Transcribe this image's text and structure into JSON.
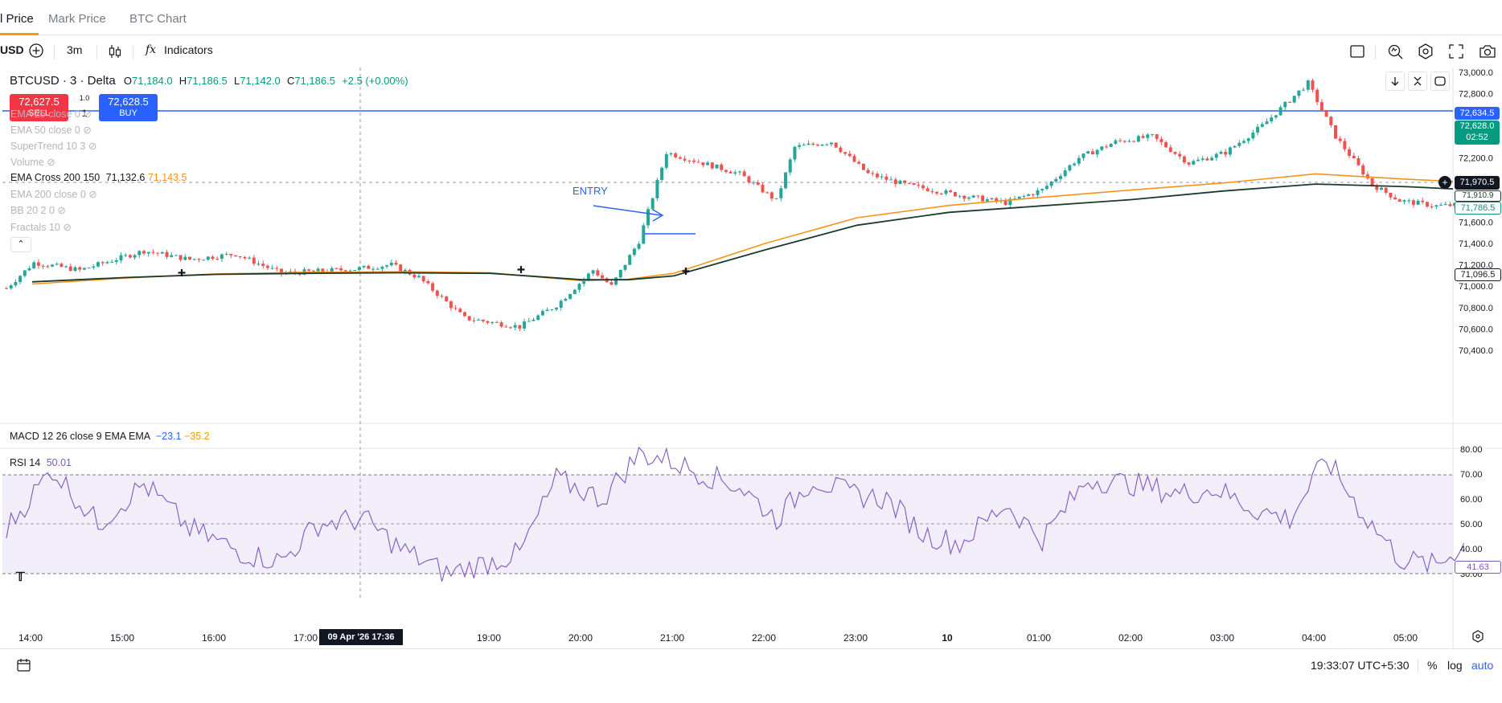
{
  "tabs": [
    {
      "label": "l Price",
      "active": true
    },
    {
      "label": "Mark Price",
      "active": false
    },
    {
      "label": "BTC Chart",
      "active": false
    }
  ],
  "toolbar": {
    "symbol_fragment": "USD",
    "interval": "3m",
    "indicators_label": "Indicators",
    "fx_glyph": "fx"
  },
  "legend": {
    "symbol": "BTCUSD · 3 · Delta",
    "open_label": "O",
    "open": "71,184.0",
    "high_label": "H",
    "high": "71,186.5",
    "low_label": "L",
    "low": "71,142.0",
    "close_label": "C",
    "close": "71,186.5",
    "change": "+2.5 (+0.00%)"
  },
  "trade": {
    "sell_price": "72,627.5",
    "sell_label": "SELL",
    "buy_price": "72,628.5",
    "buy_label": "BUY",
    "spread": "1.0",
    "qty": "1"
  },
  "indicators": [
    {
      "label": "EMA 25 close 0",
      "visible": false
    },
    {
      "label": "EMA 50 close 0",
      "visible": false
    },
    {
      "label": "SuperTrend 10 3",
      "visible": false
    },
    {
      "label": "Volume",
      "visible": false
    },
    {
      "label": "EMA Cross 200 150",
      "visible": true,
      "v1": "71,132.6",
      "v2": "71,143.5"
    },
    {
      "label": "EMA 200 close 0",
      "visible": false
    },
    {
      "label": "BB 20 2 0",
      "visible": false
    },
    {
      "label": "Fractals 10",
      "visible": false
    }
  ],
  "annotation": {
    "entry": "ENTRY"
  },
  "price_axis": {
    "ticks": [
      "73,000.0",
      "72,800.0",
      "72,600.0",
      "72,400.0",
      "72,200.0",
      "72,000.0",
      "71,800.0",
      "71,600.0",
      "71,400.0",
      "71,200.0",
      "71,000.0",
      "70,800.0",
      "70,600.0",
      "70,400.0"
    ],
    "labels": {
      "blue_line": "72,634.5",
      "last_price": "72,628.0",
      "countdown": "02:52",
      "crosshair": "71,970.5",
      "ema_black": "71,910.9",
      "ema_green": "71,786.5",
      "lower_box": "71,096.5"
    }
  },
  "macd": {
    "label": "MACD 12 26 close 9 EMA EMA",
    "v1": "−23.1",
    "v2": "−35.2"
  },
  "rsi": {
    "label": "RSI 14",
    "value": "50.01",
    "ticks": [
      "80.00",
      "70.00",
      "60.00",
      "50.00",
      "40.00",
      "30.00"
    ],
    "last_label": "41.63"
  },
  "time_axis": {
    "ticks": [
      "14:00",
      "15:00",
      "16:00",
      "17:00",
      "19:00",
      "20:00",
      "21:00",
      "22:00",
      "23:00",
      "10",
      "01:00",
      "02:00",
      "03:00",
      "04:00",
      "05:00"
    ],
    "crosshair_label": "09 Apr '26   17:36"
  },
  "bottom": {
    "clock": "19:33:07 UTC+5:30",
    "percent": "%",
    "log": "log",
    "auto": "auto"
  },
  "chart_data": {
    "type": "line",
    "title": "BTCUSD · 3 · Delta",
    "series": [
      {
        "name": "EMA Cross 200 150",
        "color": "#1b3a2a",
        "x": [
          "14:00",
          "15:00",
          "16:00",
          "17:00",
          "18:00",
          "19:00",
          "20:00",
          "20:30",
          "21:00",
          "22:00",
          "23:00",
          "00:00",
          "01:00",
          "02:00",
          "03:00",
          "04:00",
          "05:00",
          "05:30"
        ],
        "values": [
          71040,
          71080,
          71110,
          71120,
          71125,
          71120,
          71060,
          71060,
          71096,
          71340,
          71570,
          71690,
          71750,
          71810,
          71890,
          71955,
          71930,
          71910
        ]
      },
      {
        "name": "",
        "color": "#f7931a",
        "x": [
          "14:00",
          "15:00",
          "16:00",
          "17:00",
          "18:00",
          "19:00",
          "20:00",
          "20:30",
          "21:00",
          "22:00",
          "23:00",
          "00:00",
          "01:00",
          "02:00",
          "03:00",
          "04:00",
          "05:00",
          "05:30"
        ],
        "values": [
          71020,
          71075,
          71115,
          71130,
          71135,
          71125,
          71050,
          71065,
          71120,
          71400,
          71640,
          71755,
          71830,
          71900,
          71965,
          72050,
          72000,
          71980
        ]
      }
    ],
    "ylim": [
      70350,
      73100
    ],
    "rsi_ylim": [
      25,
      82
    ],
    "rsi_levels": [
      70,
      50,
      30
    ]
  },
  "colors": {
    "up": "#26a69a",
    "down": "#ef5350",
    "blue_line": "#2962ff",
    "sell": "#f23645",
    "buy": "#2962ff",
    "ema_orange": "#f7931a",
    "ema_dark": "#1b3a2a",
    "rsi": "#7e57c2",
    "accent": "#2962ff"
  }
}
